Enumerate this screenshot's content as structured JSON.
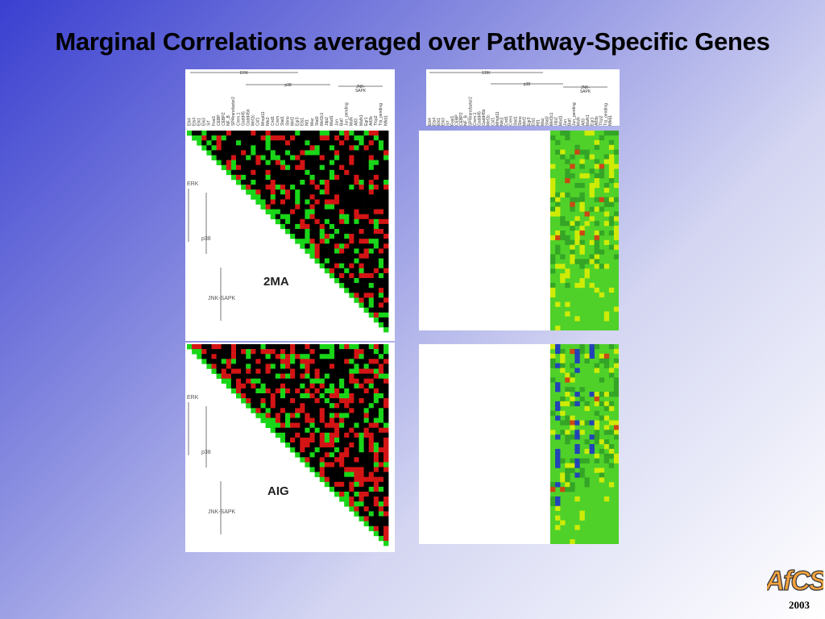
{
  "title": "Marginal Correlations averaged over Pathway-Specific Genes",
  "year": "2003",
  "logo_text": "AfCS",
  "pathway_groups": [
    "ERK",
    "p38",
    "JNK-SAPK"
  ],
  "pathway_groups_header": [
    "ERK",
    "p38",
    "JNK-\nSAPK"
  ],
  "gene_labels": [
    "Elk4",
    "Ets4",
    "Elk1",
    "Elk3",
    "Srf",
    "Fosl1",
    "CEBP",
    "CEBPZ",
    "NF_B",
    "SP4transfactor2",
    "Crem.1",
    "Gadd45",
    "Gadd45b",
    "Mef2c",
    "Csf1",
    "Mmpt11",
    "Nfe2",
    "Cnd1",
    "Crem",
    "Stat1",
    "Sbno",
    "Mef2",
    "Egr3",
    "Ets1",
    "Nf1",
    "Maz",
    "Stat3",
    "Mef2c1",
    "Jdp2",
    "Mad1",
    "Jun",
    "Batf",
    "Jun_pending",
    "Mafk",
    "Atf3",
    "Mafk1",
    "Egr1",
    "Atf3b",
    "Tfcp2",
    "Trp_pending",
    "Nfkb1"
  ],
  "panels": {
    "left_top_label": "2MA",
    "left_bottom_label": "AIG"
  },
  "colors": {
    "corr_black": "#000000",
    "corr_red": "#d41414",
    "corr_green": "#19d619",
    "heat_base": "#4fd12a",
    "heat_dark": "#2f9e26",
    "heat_yellow": "#e4f000",
    "heat_blue": "#1a2bd0",
    "heat_red": "#e03010"
  },
  "logo_colors": {
    "fill": "#f4a23c",
    "stroke": "#3a3a3a"
  }
}
